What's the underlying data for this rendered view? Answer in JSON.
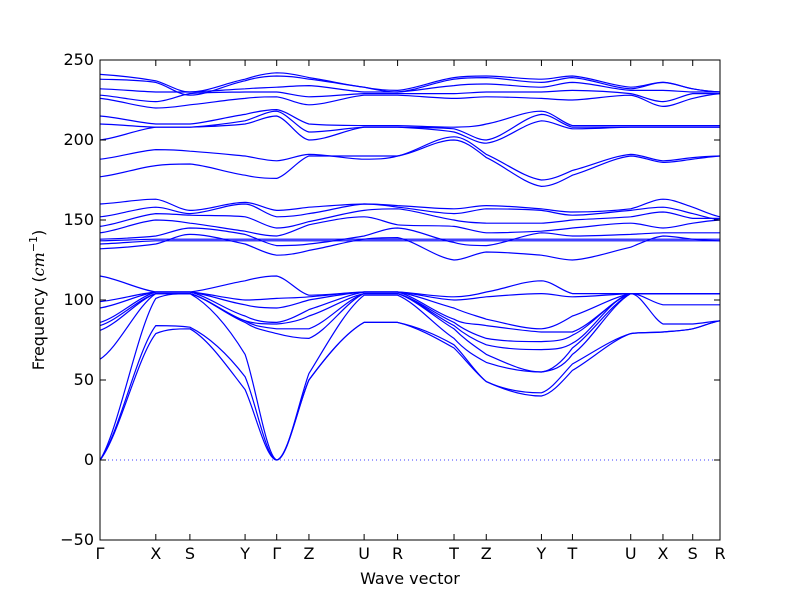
{
  "chart_data": {
    "type": "line",
    "title": "",
    "xlabel": "Wave vector",
    "ylabel": "Frequency (cm⁻¹)",
    "ylabel_parts": {
      "prefix": "Frequency (",
      "unit": "cm",
      "exp": "−1",
      "suffix": ")"
    },
    "ylim": [
      -50,
      250
    ],
    "yticks": [
      -50,
      0,
      50,
      100,
      150,
      200,
      250
    ],
    "xlim": [
      0,
      100
    ],
    "grid": false,
    "legend": "none",
    "line_color": "#0000ff",
    "zero_line": {
      "y": 0,
      "style": "dotted"
    },
    "high_symmetry_points": [
      {
        "label": "Γ",
        "x": 0
      },
      {
        "label": "X",
        "x": 9
      },
      {
        "label": "S",
        "x": 14.5
      },
      {
        "label": "Y",
        "x": 23.4
      },
      {
        "label": "Γ",
        "x": 28.5
      },
      {
        "label": "Z",
        "x": 33.7
      },
      {
        "label": "U",
        "x": 42.6
      },
      {
        "label": "R",
        "x": 48
      },
      {
        "label": "T",
        "x": 57.1
      },
      {
        "label": "Z",
        "x": 62.3
      },
      {
        "label": "Y",
        "x": 71.2
      },
      {
        "label": "T",
        "x": 76.2
      },
      {
        "label": "U",
        "x": 85.6
      },
      {
        "label": "X",
        "x": 90.8
      },
      {
        "label": "S",
        "x": 95.6
      },
      {
        "label": "R",
        "x": 100
      }
    ],
    "series": [
      {
        "x": [
          0,
          9,
          14.5,
          23.4,
          28.5,
          33.7,
          42.6,
          48,
          57.1,
          62.3,
          71.2,
          76.2,
          85.6,
          90.8,
          95.6,
          100
        ],
        "values": [
          0,
          79,
          82,
          44,
          0,
          50,
          86,
          86,
          70,
          49,
          40,
          56,
          79,
          80,
          82,
          87
        ]
      },
      {
        "x": [
          0,
          9,
          14.5,
          23.4,
          28.5,
          33.7,
          42.6,
          48,
          57.1,
          62.3,
          71.2,
          76.2,
          85.6,
          90.8,
          95.6,
          100
        ],
        "values": [
          0,
          84,
          83,
          52,
          0,
          50,
          86,
          86,
          72,
          49,
          42,
          60,
          79,
          80,
          82,
          87
        ]
      },
      {
        "x": [
          0,
          9,
          14.5,
          23.4,
          28.5,
          33.7,
          42.6,
          48,
          57.1,
          62.3,
          71.2,
          76.2,
          85.6,
          90.8,
          95.6,
          100
        ],
        "values": [
          0,
          101,
          104,
          66,
          0,
          54,
          103,
          103,
          76,
          61,
          55,
          66,
          104,
          104,
          104,
          104
        ]
      },
      {
        "x": [
          0,
          9,
          14.5,
          23.4,
          28.5,
          33.7,
          42.6,
          48,
          57.1,
          62.3,
          71.2,
          76.2,
          85.6,
          90.8,
          95.6,
          100
        ],
        "values": [
          63,
          104,
          104,
          86,
          79,
          76,
          104,
          104,
          82,
          66,
          55,
          70,
          104,
          104,
          104,
          104
        ]
      },
      {
        "x": [
          0,
          9,
          14.5,
          23.4,
          28.5,
          33.7,
          42.6,
          48,
          57.1,
          62.3,
          71.2,
          76.2,
          85.6,
          90.8,
          95.6,
          100
        ],
        "values": [
          81,
          104,
          104,
          87,
          82,
          82,
          104,
          104,
          84,
          72,
          69,
          73,
          104,
          85,
          85,
          87
        ]
      },
      {
        "x": [
          0,
          9,
          14.5,
          23.4,
          28.5,
          33.7,
          42.6,
          48,
          57.1,
          62.3,
          71.2,
          76.2,
          85.6,
          90.8,
          95.6,
          100
        ],
        "values": [
          84,
          104,
          104,
          87,
          85,
          90,
          104,
          104,
          86,
          76,
          74,
          78,
          104,
          97,
          97,
          97
        ]
      },
      {
        "x": [
          0,
          9,
          14.5,
          23.4,
          28.5,
          33.7,
          42.6,
          48,
          57.1,
          62.3,
          71.2,
          76.2,
          85.6,
          90.8,
          95.6,
          100
        ],
        "values": [
          86,
          105,
          105,
          90,
          86,
          94,
          105,
          105,
          88,
          84,
          80,
          80,
          104,
          104,
          104,
          104
        ]
      },
      {
        "x": [
          0,
          9,
          14.5,
          23.4,
          28.5,
          33.7,
          42.6,
          48,
          57.1,
          62.3,
          71.2,
          76.2,
          85.6,
          90.8,
          95.6,
          100
        ],
        "values": [
          95,
          105,
          105,
          97,
          95,
          100,
          105,
          105,
          95,
          88,
          82,
          90,
          104,
          104,
          104,
          104
        ]
      },
      {
        "x": [
          0,
          9,
          14.5,
          23.4,
          28.5,
          33.7,
          42.6,
          48,
          57.1,
          62.3,
          71.2,
          76.2,
          85.6,
          90.8,
          95.6,
          100
        ],
        "values": [
          99,
          105,
          105,
          100,
          101,
          102,
          105,
          105,
          100,
          102,
          104,
          102,
          104,
          104,
          104,
          104
        ]
      },
      {
        "x": [
          0,
          9,
          14.5,
          23.4,
          28.5,
          33.7,
          42.6,
          48,
          57.1,
          62.3,
          71.2,
          76.2,
          85.6,
          90.8,
          95.6,
          100
        ],
        "values": [
          115,
          105,
          105,
          112,
          115,
          103,
          105,
          105,
          102,
          105,
          112,
          104,
          104,
          104,
          104,
          104
        ]
      },
      {
        "x": [
          0,
          9,
          14.5,
          23.4,
          28.5,
          33.7,
          42.6,
          48,
          57.1,
          62.3,
          71.2,
          76.2,
          85.6,
          90.8,
          95.6,
          100
        ],
        "values": [
          132,
          135,
          141,
          135,
          128,
          131,
          138,
          139,
          125,
          130,
          128,
          125,
          133,
          140,
          138,
          137
        ]
      },
      {
        "x": [
          0,
          9,
          14.5,
          23.4,
          28.5,
          33.7,
          42.6,
          48,
          57.1,
          62.3,
          71.2,
          76.2,
          85.6,
          90.8,
          95.6,
          100
        ],
        "values": [
          135,
          137,
          137,
          137,
          137,
          137,
          137,
          137,
          137,
          137,
          137,
          137,
          137,
          137,
          137,
          137
        ]
      },
      {
        "x": [
          0,
          9,
          14.5,
          23.4,
          28.5,
          33.7,
          42.6,
          48,
          57.1,
          62.3,
          71.2,
          76.2,
          85.6,
          90.8,
          95.6,
          100
        ],
        "values": [
          137,
          138,
          138,
          138,
          138,
          138,
          138,
          138,
          138,
          138,
          138,
          138,
          138,
          138,
          138,
          138
        ]
      },
      {
        "x": [
          0,
          9,
          14.5,
          23.4,
          28.5,
          33.7,
          42.6,
          48,
          57.1,
          62.3,
          71.2,
          76.2,
          85.6,
          90.8,
          95.6,
          100
        ],
        "values": [
          138,
          140,
          145,
          141,
          134,
          135,
          140,
          145,
          136,
          134,
          142,
          140,
          141,
          142,
          142,
          142
        ]
      },
      {
        "x": [
          0,
          9,
          14.5,
          23.4,
          28.5,
          33.7,
          42.6,
          48,
          57.1,
          62.3,
          71.2,
          76.2,
          85.6,
          90.8,
          95.6,
          100
        ],
        "values": [
          142,
          150,
          148,
          143,
          140,
          147,
          152,
          147,
          146,
          142,
          143,
          145,
          148,
          145,
          148,
          150
        ]
      },
      {
        "x": [
          0,
          9,
          14.5,
          23.4,
          28.5,
          33.7,
          42.6,
          48,
          57.1,
          62.3,
          71.2,
          76.2,
          85.6,
          90.8,
          95.6,
          100
        ],
        "values": [
          146,
          154,
          153,
          152,
          145,
          149,
          156,
          157,
          150,
          148,
          148,
          150,
          152,
          155,
          151,
          151
        ]
      },
      {
        "x": [
          0,
          9,
          14.5,
          23.4,
          28.5,
          33.7,
          42.6,
          48,
          57.1,
          62.3,
          71.2,
          76.2,
          85.6,
          90.8,
          95.6,
          100
        ],
        "values": [
          152,
          158,
          154,
          160,
          152,
          154,
          160,
          158,
          154,
          157,
          156,
          153,
          156,
          158,
          154,
          150
        ]
      },
      {
        "x": [
          0,
          9,
          14.5,
          23.4,
          28.5,
          33.7,
          42.6,
          48,
          57.1,
          62.3,
          71.2,
          76.2,
          85.6,
          90.8,
          95.6,
          100
        ],
        "values": [
          160,
          163,
          156,
          161,
          156,
          158,
          160,
          159,
          157,
          159,
          157,
          155,
          157,
          163,
          158,
          152
        ]
      },
      {
        "x": [
          0,
          9,
          14.5,
          23.4,
          28.5,
          33.7,
          42.6,
          48,
          57.1,
          62.3,
          71.2,
          76.2,
          85.6,
          90.8,
          95.6,
          100
        ],
        "values": [
          177,
          184,
          185,
          178,
          176,
          190,
          190,
          190,
          200,
          189,
          171,
          178,
          190,
          186,
          188,
          190
        ]
      },
      {
        "x": [
          0,
          9,
          14.5,
          23.4,
          28.5,
          33.7,
          42.6,
          48,
          57.1,
          62.3,
          71.2,
          76.2,
          85.6,
          90.8,
          95.6,
          100
        ],
        "values": [
          188,
          194,
          193,
          190,
          187,
          191,
          188,
          190,
          202,
          191,
          175,
          181,
          191,
          187,
          189,
          190
        ]
      },
      {
        "x": [
          0,
          9,
          14.5,
          23.4,
          28.5,
          33.7,
          42.6,
          48,
          57.1,
          62.3,
          71.2,
          76.2,
          85.6,
          90.8,
          95.6,
          100
        ],
        "values": [
          200,
          208,
          208,
          210,
          215,
          200,
          208,
          208,
          205,
          198,
          212,
          207,
          208,
          208,
          208,
          208
        ]
      },
      {
        "x": [
          0,
          9,
          14.5,
          23.4,
          28.5,
          33.7,
          42.6,
          48,
          57.1,
          62.3,
          71.2,
          76.2,
          85.6,
          90.8,
          95.6,
          100
        ],
        "values": [
          210,
          208,
          208,
          212,
          218,
          205,
          208,
          208,
          207,
          200,
          216,
          208,
          208,
          208,
          208,
          208
        ]
      },
      {
        "x": [
          0,
          9,
          14.5,
          23.4,
          28.5,
          33.7,
          42.6,
          48,
          57.1,
          62.3,
          71.2,
          76.2,
          85.6,
          90.8,
          95.6,
          100
        ],
        "values": [
          215,
          210,
          210,
          216,
          219,
          210,
          209,
          209,
          208,
          210,
          218,
          209,
          209,
          209,
          209,
          209
        ]
      },
      {
        "x": [
          0,
          9,
          14.5,
          23.4,
          28.5,
          33.7,
          42.6,
          48,
          57.1,
          62.3,
          71.2,
          76.2,
          85.6,
          90.8,
          95.6,
          100
        ],
        "values": [
          226,
          220,
          222,
          226,
          227,
          222,
          228,
          228,
          226,
          227,
          226,
          225,
          228,
          221,
          226,
          229
        ]
      },
      {
        "x": [
          0,
          9,
          14.5,
          23.4,
          28.5,
          33.7,
          42.6,
          48,
          57.1,
          62.3,
          71.2,
          76.2,
          85.6,
          90.8,
          95.6,
          100
        ],
        "values": [
          228,
          224,
          229,
          230,
          230,
          227,
          229,
          229,
          229,
          230,
          230,
          231,
          229,
          224,
          229,
          229
        ]
      },
      {
        "x": [
          0,
          9,
          14.5,
          23.4,
          28.5,
          33.7,
          42.6,
          48,
          57.1,
          62.3,
          71.2,
          76.2,
          85.6,
          90.8,
          95.6,
          100
        ],
        "values": [
          232,
          230,
          230,
          232,
          233,
          234,
          230,
          230,
          234,
          235,
          233,
          236,
          231,
          231,
          230,
          230
        ]
      },
      {
        "x": [
          0,
          9,
          14.5,
          23.4,
          28.5,
          33.7,
          42.6,
          48,
          57.1,
          62.3,
          71.2,
          76.2,
          85.6,
          90.8,
          95.6,
          100
        ],
        "values": [
          238,
          236,
          228,
          237,
          240,
          238,
          233,
          230,
          238,
          239,
          236,
          239,
          232,
          236,
          232,
          230
        ]
      },
      {
        "x": [
          0,
          9,
          14.5,
          23.4,
          28.5,
          33.7,
          42.6,
          48,
          57.1,
          62.3,
          71.2,
          76.2,
          85.6,
          90.8,
          95.6,
          100
        ],
        "values": [
          241,
          237,
          230,
          238,
          242,
          239,
          233,
          231,
          239,
          240,
          238,
          240,
          233,
          236,
          232,
          230
        ]
      }
    ]
  }
}
